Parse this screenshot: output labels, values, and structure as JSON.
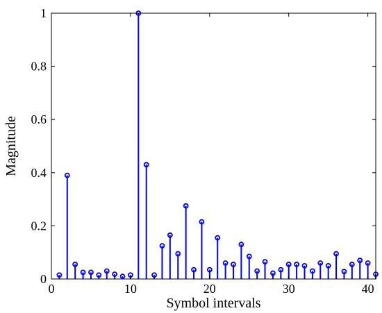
{
  "chart_data": {
    "type": "stem",
    "title": "",
    "xlabel": "Symbol intervals",
    "ylabel": "Magnitude",
    "xlim": [
      0,
      41
    ],
    "ylim": [
      0,
      1
    ],
    "xticks": [
      0,
      10,
      20,
      30,
      40
    ],
    "yticks": [
      0,
      0.2,
      0.4,
      0.6,
      0.8,
      1
    ],
    "ytick_labels": [
      "0",
      "0.2",
      "0.4",
      "0.6",
      "0.8",
      "1"
    ],
    "grid": false,
    "color": "#0000ff",
    "x": [
      1,
      2,
      3,
      4,
      5,
      6,
      7,
      8,
      9,
      10,
      11,
      12,
      13,
      14,
      15,
      16,
      17,
      18,
      19,
      20,
      21,
      22,
      23,
      24,
      25,
      26,
      27,
      28,
      29,
      30,
      31,
      32,
      33,
      34,
      35,
      36,
      37,
      38,
      39,
      40,
      41
    ],
    "y": [
      0.015,
      0.39,
      0.055,
      0.025,
      0.025,
      0.015,
      0.03,
      0.018,
      0.01,
      0.015,
      1.0,
      0.43,
      0.015,
      0.125,
      0.165,
      0.095,
      0.275,
      0.035,
      0.215,
      0.035,
      0.155,
      0.06,
      0.055,
      0.13,
      0.085,
      0.03,
      0.065,
      0.022,
      0.035,
      0.055,
      0.055,
      0.05,
      0.03,
      0.06,
      0.05,
      0.095,
      0.028,
      0.055,
      0.07,
      0.06,
      0.018
    ]
  }
}
